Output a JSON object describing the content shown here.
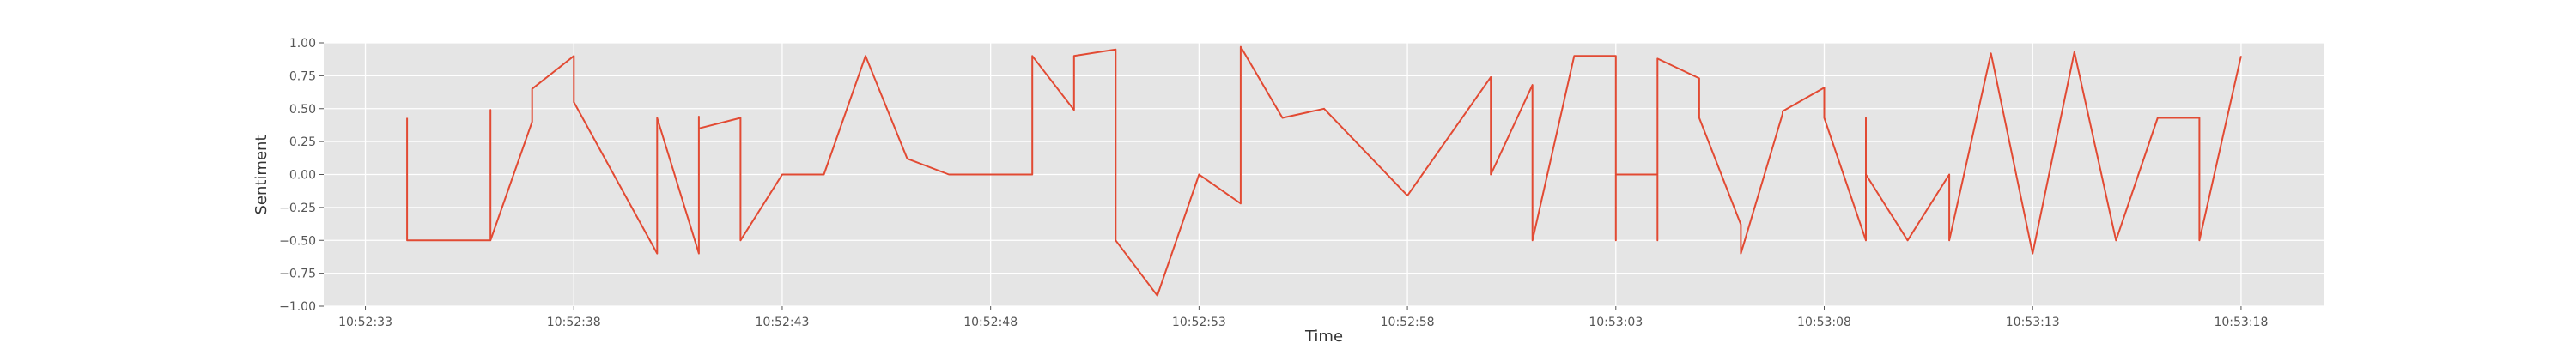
{
  "chart_data": {
    "type": "line",
    "title": "",
    "xlabel": "Time",
    "ylabel": "Sentiment",
    "ylim": [
      -1.0,
      1.0
    ],
    "xlim": [
      "10:52:32",
      "10:53:20"
    ],
    "grid": true,
    "x_ticks": [
      "10:52:33",
      "10:52:38",
      "10:52:43",
      "10:52:48",
      "10:52:53",
      "10:52:58",
      "10:53:03",
      "10:53:08",
      "10:53:13",
      "10:53:18"
    ],
    "y_ticks": [
      "1.00",
      "0.75",
      "0.50",
      "0.25",
      "0.00",
      "−0.25",
      "−0.50",
      "−0.75",
      "−1.00"
    ],
    "colors": {
      "line": "#e24a33",
      "plot_bg": "#e5e5e5",
      "grid": "#ffffff"
    },
    "series": [
      {
        "x": [
          "10:52:34",
          "10:52:34",
          "10:52:36",
          "10:52:36",
          "10:52:36",
          "10:52:37",
          "10:52:37",
          "10:52:38",
          "10:52:38",
          "10:52:40",
          "10:52:40",
          "10:52:41",
          "10:52:41",
          "10:52:41",
          "10:52:42",
          "10:52:42",
          "10:52:43",
          "10:52:44",
          "10:52:45",
          "10:52:46",
          "10:52:47",
          "10:52:49",
          "10:52:49",
          "10:52:50",
          "10:52:50",
          "10:52:51",
          "10:52:51",
          "10:52:52",
          "10:52:53",
          "10:52:54",
          "10:52:54",
          "10:52:55",
          "10:52:56",
          "10:52:58",
          "10:53:00",
          "10:53:00",
          "10:53:01",
          "10:53:01",
          "10:53:02",
          "10:53:03",
          "10:53:03",
          "10:53:03",
          "10:53:04",
          "10:53:04",
          "10:53:04",
          "10:53:05",
          "10:53:05",
          "10:53:06",
          "10:53:06",
          "10:53:07",
          "10:53:07",
          "10:53:08",
          "10:53:08",
          "10:53:09",
          "10:53:09",
          "10:53:09",
          "10:53:10",
          "10:53:11",
          "10:53:11",
          "10:53:12",
          "10:53:13",
          "10:53:14",
          "10:53:15",
          "10:53:16",
          "10:53:17",
          "10:53:17",
          "10:53:18"
        ],
        "y": [
          0.43,
          -0.5,
          -0.5,
          0.49,
          -0.5,
          0.4,
          0.65,
          0.9,
          0.55,
          -0.6,
          0.43,
          -0.6,
          0.44,
          0.35,
          0.43,
          -0.5,
          0.0,
          0.0,
          0.9,
          0.12,
          0.0,
          0.0,
          0.9,
          0.49,
          0.9,
          0.95,
          -0.5,
          -0.92,
          0.0,
          -0.22,
          0.97,
          0.43,
          0.5,
          -0.16,
          0.74,
          0.0,
          0.68,
          -0.5,
          0.9,
          0.9,
          -0.5,
          0.0,
          0.0,
          -0.5,
          0.88,
          0.73,
          0.43,
          -0.38,
          -0.6,
          0.46,
          0.48,
          0.66,
          0.43,
          -0.5,
          0.43,
          0.0,
          -0.5,
          0.0,
          -0.5,
          0.92,
          -0.6,
          0.93,
          -0.5,
          0.43,
          0.43,
          -0.5,
          0.9
        ]
      }
    ]
  }
}
